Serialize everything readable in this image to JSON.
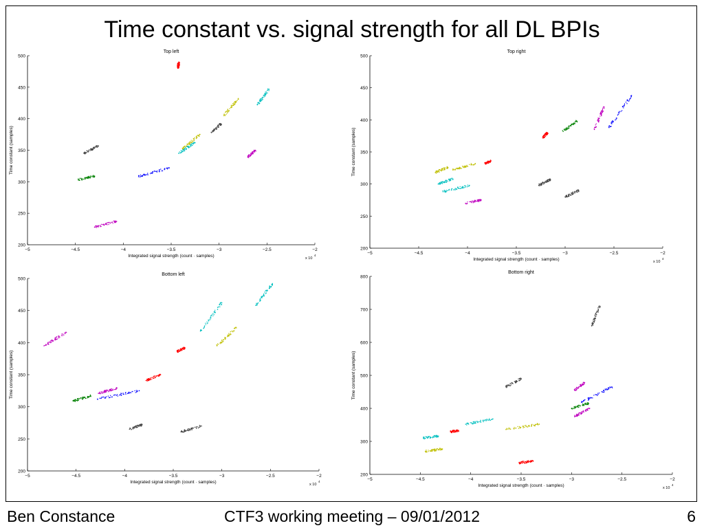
{
  "slide": {
    "title": "Time constant vs. signal strength for all DL BPIs",
    "footer_left": "Ben Constance",
    "footer_center": "CTF3 working meeting – 09/01/2012",
    "page_number": "6"
  },
  "chart_data": [
    {
      "type": "scatter",
      "title": "Top left",
      "xlabel": "Integrated signal strength (count · samples)",
      "ylabel": "Time constant (samples)",
      "xlim": [
        -5,
        -2
      ],
      "ylim": [
        200,
        500
      ],
      "xticks": [
        -5,
        -4.5,
        -4,
        -3.5,
        -3,
        -2.5,
        -2
      ],
      "yticks": [
        200,
        250,
        300,
        350,
        400,
        450,
        500
      ],
      "xmultiplier": "x 10",
      "xmultiplier_exp": "4",
      "grid": false,
      "series": [
        {
          "color": "#ff0000",
          "values": [
            [
              -3.43,
              480
            ],
            [
              -3.42,
              490
            ]
          ]
        },
        {
          "color": "#00bfbf",
          "values": [
            [
              -2.6,
              422
            ],
            [
              -2.48,
              447
            ]
          ]
        },
        {
          "color": "#bfbf00",
          "values": [
            [
              -2.95,
              405
            ],
            [
              -2.8,
              432
            ]
          ]
        },
        {
          "color": "#bfbf00",
          "values": [
            [
              -3.38,
              352
            ],
            [
              -3.2,
              375
            ]
          ]
        },
        {
          "color": "#00bfbf",
          "values": [
            [
              -3.42,
              345
            ],
            [
              -3.25,
              362
            ]
          ]
        },
        {
          "color": "#404040",
          "values": [
            [
              -3.08,
              378
            ],
            [
              -2.98,
              392
            ]
          ]
        },
        {
          "color": "#404040",
          "values": [
            [
              -4.41,
              345
            ],
            [
              -4.26,
              357
            ]
          ]
        },
        {
          "color": "#0000ff",
          "values": [
            [
              -3.84,
              308
            ],
            [
              -3.52,
              322
            ]
          ]
        },
        {
          "color": "#008000",
          "values": [
            [
              -4.47,
              303
            ],
            [
              -4.3,
              309
            ]
          ]
        },
        {
          "color": "#bf00bf",
          "values": [
            [
              -2.7,
              339
            ],
            [
              -2.62,
              350
            ]
          ]
        },
        {
          "color": "#bf00bf",
          "values": [
            [
              -4.3,
              228
            ],
            [
              -4.07,
              237
            ]
          ]
        }
      ]
    },
    {
      "type": "scatter",
      "title": "Top right",
      "xlabel": "Integrated signal strength (count · samples)",
      "ylabel": "Time constant (samples)",
      "xlim": [
        -5,
        -2
      ],
      "ylim": [
        200,
        500
      ],
      "xticks": [
        -5,
        -4.5,
        -4,
        -3.5,
        -3,
        -2.5,
        -2
      ],
      "yticks": [
        200,
        250,
        300,
        350,
        400,
        450,
        500
      ],
      "xmultiplier": "x 10",
      "xmultiplier_exp": "4",
      "grid": false,
      "series": [
        {
          "color": "#0000ff",
          "values": [
            [
              -2.55,
              388
            ],
            [
              -2.32,
              438
            ]
          ]
        },
        {
          "color": "#bf00bf",
          "values": [
            [
              -2.7,
              385
            ],
            [
              -2.6,
              420
            ]
          ]
        },
        {
          "color": "#008000",
          "values": [
            [
              -3.02,
              382
            ],
            [
              -2.88,
              398
            ]
          ]
        },
        {
          "color": "#ff0000",
          "values": [
            [
              -3.23,
              372
            ],
            [
              -3.18,
              380
            ]
          ]
        },
        {
          "color": "#bfbf00",
          "values": [
            [
              -4.33,
              318
            ],
            [
              -4.2,
              326
            ]
          ]
        },
        {
          "color": "#bfbf00",
          "values": [
            [
              -4.15,
              322
            ],
            [
              -3.92,
              332
            ]
          ]
        },
        {
          "color": "#ff0000",
          "values": [
            [
              -3.82,
              332
            ],
            [
              -3.76,
              336
            ]
          ]
        },
        {
          "color": "#00bfbf",
          "values": [
            [
              -4.3,
              300
            ],
            [
              -4.15,
              308
            ]
          ]
        },
        {
          "color": "#00bfbf",
          "values": [
            [
              -4.25,
              288
            ],
            [
              -3.98,
              298
            ]
          ]
        },
        {
          "color": "#404040",
          "values": [
            [
              -3.27,
              298
            ],
            [
              -3.15,
              307
            ]
          ]
        },
        {
          "color": "#404040",
          "values": [
            [
              -3.0,
              280
            ],
            [
              -2.86,
              290
            ]
          ]
        },
        {
          "color": "#bf00bf",
          "values": [
            [
              -4.02,
              270
            ],
            [
              -3.86,
              275
            ]
          ]
        }
      ]
    },
    {
      "type": "scatter",
      "title": "Bottom left",
      "xlabel": "Integrated signal strength (count · samples)",
      "ylabel": "Time constant (samples)",
      "xlim": [
        -5,
        -2
      ],
      "ylim": [
        200,
        500
      ],
      "xticks": [
        -5,
        -4.5,
        -4,
        -3.5,
        -3,
        -2.5,
        -2
      ],
      "yticks": [
        200,
        250,
        300,
        350,
        400,
        450,
        500
      ],
      "xmultiplier": "x 10",
      "xmultiplier_exp": "4",
      "grid": false,
      "series": [
        {
          "color": "#00bfbf",
          "values": [
            [
              -2.65,
              458
            ],
            [
              -2.48,
              492
            ]
          ]
        },
        {
          "color": "#00bfbf",
          "values": [
            [
              -3.22,
              418
            ],
            [
              -3.0,
              462
            ]
          ]
        },
        {
          "color": "#bfbf00",
          "values": [
            [
              -3.05,
              395
            ],
            [
              -2.85,
              423
            ]
          ]
        },
        {
          "color": "#bf00bf",
          "values": [
            [
              -4.83,
              395
            ],
            [
              -4.6,
              416
            ]
          ]
        },
        {
          "color": "#ff0000",
          "values": [
            [
              -3.46,
              386
            ],
            [
              -3.38,
              392
            ]
          ]
        },
        {
          "color": "#ff0000",
          "values": [
            [
              -3.78,
              341
            ],
            [
              -3.63,
              350
            ]
          ]
        },
        {
          "color": "#bf00bf",
          "values": [
            [
              -4.27,
              321
            ],
            [
              -4.08,
              329
            ]
          ]
        },
        {
          "color": "#0000ff",
          "values": [
            [
              -4.28,
              312
            ],
            [
              -3.85,
              325
            ]
          ]
        },
        {
          "color": "#008000",
          "values": [
            [
              -4.53,
              309
            ],
            [
              -4.35,
              317
            ]
          ]
        },
        {
          "color": "#404040",
          "values": [
            [
              -3.95,
              265
            ],
            [
              -3.82,
              272
            ]
          ]
        },
        {
          "color": "#404040",
          "values": [
            [
              -3.42,
              261
            ],
            [
              -3.21,
              270
            ]
          ]
        }
      ]
    },
    {
      "type": "scatter",
      "title": "Bottom right",
      "xlabel": "Integrated signal strength (count · samples)",
      "ylabel": "Time constant (samples)",
      "xlim": [
        -5,
        -2
      ],
      "ylim": [
        200,
        800
      ],
      "xticks": [
        -5,
        -4.5,
        -4,
        -3.5,
        -3,
        -2.5,
        -2
      ],
      "yticks": [
        200,
        300,
        400,
        500,
        600,
        700,
        800
      ],
      "xmultiplier": "x 10",
      "xmultiplier_exp": "4",
      "grid": false,
      "series": [
        {
          "color": "#404040",
          "values": [
            [
              -2.8,
              650
            ],
            [
              -2.72,
              710
            ]
          ]
        },
        {
          "color": "#404040",
          "values": [
            [
              -3.65,
              465
            ],
            [
              -3.5,
              490
            ]
          ]
        },
        {
          "color": "#bf00bf",
          "values": [
            [
              -2.97,
              455
            ],
            [
              -2.87,
              478
            ]
          ]
        },
        {
          "color": "#0000ff",
          "values": [
            [
              -2.9,
              418
            ],
            [
              -2.6,
              465
            ]
          ]
        },
        {
          "color": "#008000",
          "values": [
            [
              -3.0,
              400
            ],
            [
              -2.83,
              415
            ]
          ]
        },
        {
          "color": "#bf00bf",
          "values": [
            [
              -2.97,
              375
            ],
            [
              -2.82,
              400
            ]
          ]
        },
        {
          "color": "#00bfbf",
          "values": [
            [
              -4.05,
              352
            ],
            [
              -3.78,
              368
            ]
          ]
        },
        {
          "color": "#bfbf00",
          "values": [
            [
              -3.65,
              336
            ],
            [
              -3.32,
              352
            ]
          ]
        },
        {
          "color": "#00bfbf",
          "values": [
            [
              -4.47,
              310
            ],
            [
              -4.32,
              316
            ]
          ]
        },
        {
          "color": "#ff0000",
          "values": [
            [
              -4.2,
              329
            ],
            [
              -4.12,
              333
            ]
          ]
        },
        {
          "color": "#bfbf00",
          "values": [
            [
              -4.45,
              270
            ],
            [
              -4.28,
              277
            ]
          ]
        },
        {
          "color": "#ff0000",
          "values": [
            [
              -3.52,
              235
            ],
            [
              -3.38,
              240
            ]
          ]
        }
      ]
    }
  ]
}
